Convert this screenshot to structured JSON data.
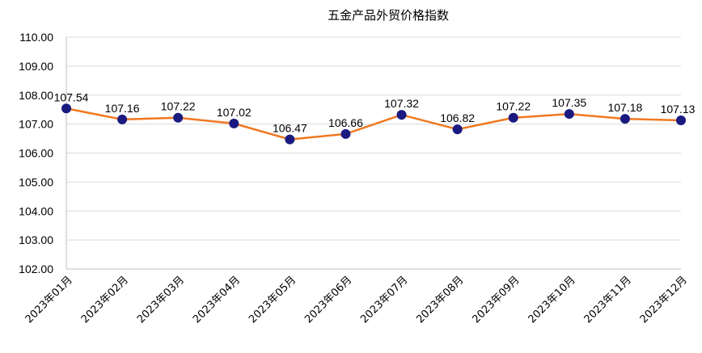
{
  "chart_data": {
    "type": "line",
    "title": "五金产品外贸价格指数",
    "xlabel": "",
    "ylabel": "",
    "categories": [
      "2023年01月",
      "2023年02月",
      "2023年03月",
      "2023年04月",
      "2023年05月",
      "2023年06月",
      "2023年07月",
      "2023年08月",
      "2023年09月",
      "2023年10月",
      "2023年11月",
      "2023年12月"
    ],
    "series": [
      {
        "values": [
          107.54,
          107.16,
          107.22,
          107.02,
          106.47,
          106.66,
          107.32,
          106.82,
          107.22,
          107.35,
          107.18,
          107.13
        ],
        "labels": [
          "107.54",
          "107.16",
          "107.22",
          "107.02",
          "106.47",
          "106.66",
          "107.32",
          "106.82",
          "107.22",
          "107.35",
          "107.18",
          "107.13"
        ],
        "line_color": "#F07820",
        "marker_color": "#1A1A80"
      }
    ],
    "ylim": [
      102,
      110
    ],
    "yticks": [
      "102.00",
      "103.00",
      "104.00",
      "105.00",
      "106.00",
      "107.00",
      "108.00",
      "109.00",
      "110.00"
    ],
    "grid": true,
    "legend": "none"
  }
}
